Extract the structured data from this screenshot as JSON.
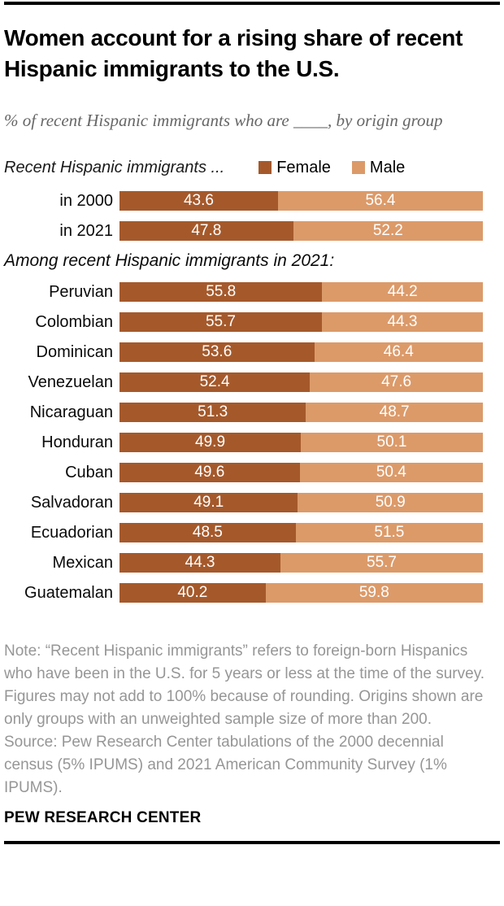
{
  "header": {
    "title": "Women account for a rising share of recent Hispanic immigrants to the U.S.",
    "subtitle": "% of recent Hispanic immigrants who are ____, by origin group"
  },
  "legend": {
    "prefix": "Recent Hispanic immigrants ...",
    "female_label": "Female",
    "male_label": "Male"
  },
  "colors": {
    "female_bar": "#A5592B",
    "male_bar": "#DC9A69",
    "bar_value_text": "#ffffff",
    "rule": "#000000",
    "subtitle_text": "#666666",
    "note_text": "#969696"
  },
  "chart_data": {
    "type": "bar",
    "variant": "horizontal-stacked-100",
    "unit": "%",
    "series": [
      "Female",
      "Male"
    ],
    "legend_position": "top",
    "axis": "none",
    "year_rows": [
      {
        "label": "in 2000",
        "values": [
          43.6,
          56.4
        ]
      },
      {
        "label": "in 2021",
        "values": [
          47.8,
          52.2
        ]
      }
    ],
    "origin_section_label": "Among recent Hispanic immigrants in 2021:",
    "origin_rows": [
      {
        "label": "Peruvian",
        "values": [
          55.8,
          44.2
        ]
      },
      {
        "label": "Colombian",
        "values": [
          55.7,
          44.3
        ]
      },
      {
        "label": "Dominican",
        "values": [
          53.6,
          46.4
        ]
      },
      {
        "label": "Venezuelan",
        "values": [
          52.4,
          47.6
        ]
      },
      {
        "label": "Nicaraguan",
        "values": [
          51.3,
          48.7
        ]
      },
      {
        "label": "Honduran",
        "values": [
          49.9,
          50.1
        ]
      },
      {
        "label": "Cuban",
        "values": [
          49.6,
          50.4
        ]
      },
      {
        "label": "Salvadoran",
        "values": [
          49.1,
          50.9
        ]
      },
      {
        "label": "Ecuadorian",
        "values": [
          48.5,
          51.5
        ]
      },
      {
        "label": "Mexican",
        "values": [
          44.3,
          55.7
        ]
      },
      {
        "label": "Guatemalan",
        "values": [
          40.2,
          59.8
        ]
      }
    ]
  },
  "footer": {
    "note": "Note: “Recent Hispanic immigrants” refers to foreign-born Hispanics who have been in the U.S. for 5 years or less at the time of the survey. Figures may not add to 100% because of rounding. Origins shown are only groups with an unweighted sample size of more than 200.",
    "source": "Source: Pew Research Center tabulations of the 2000 decennial census (5% IPUMS) and 2021 American Community Survey (1% IPUMS).",
    "brand": "PEW RESEARCH CENTER"
  }
}
